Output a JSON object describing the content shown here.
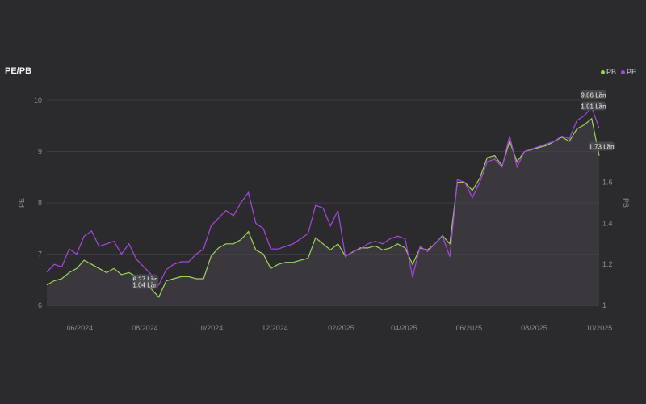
{
  "header": {
    "title": "PE/PB"
  },
  "legend": [
    {
      "name": "PB",
      "color": "#9ed35a"
    },
    {
      "name": "PE",
      "color": "#a747e0"
    }
  ],
  "tooltips": [
    {
      "text": "9.86 Lần",
      "anchor": "right-end",
      "series": "PE"
    },
    {
      "text": "1.91 Lần",
      "anchor": "right-end",
      "series": "PB"
    },
    {
      "text": "1.73 Lần",
      "anchor": "right-axis",
      "series": "PB"
    },
    {
      "text": "6.27 Lần",
      "anchor": "min",
      "series": "PE"
    },
    {
      "text": "1.04 Lần",
      "anchor": "min",
      "series": "PB"
    }
  ],
  "chart_data": {
    "type": "line",
    "title": "PE/PB",
    "ylabel": "PE",
    "y2label": "PB",
    "ylim": [
      6,
      10
    ],
    "y2lim": [
      1,
      2
    ],
    "yticks": [
      "6",
      "7",
      "8",
      "9",
      "10"
    ],
    "y2ticks": [
      "1",
      "1.2",
      "1.4",
      "1.6"
    ],
    "xlim": [
      "2024-05-01",
      "2025-10-01"
    ],
    "xticks": [
      {
        "label": "06/2024",
        "date": "2024-06-01"
      },
      {
        "label": "08/2024",
        "date": "2024-08-01"
      },
      {
        "label": "10/2024",
        "date": "2024-10-01"
      },
      {
        "label": "12/2024",
        "date": "2024-12-01"
      },
      {
        "label": "02/2025",
        "date": "2025-02-01"
      },
      {
        "label": "04/2025",
        "date": "2025-04-01"
      },
      {
        "label": "06/2025",
        "date": "2025-06-01"
      },
      {
        "label": "08/2025",
        "date": "2025-08-01"
      },
      {
        "label": "10/2025",
        "date": "2025-10-01"
      }
    ],
    "grid": true,
    "legend_position": "top-right",
    "series": [
      {
        "name": "PE",
        "axis": "left",
        "color": "#a747e0",
        "points": [
          [
            "2024-05-01",
            6.65
          ],
          [
            "2024-05-08",
            6.8
          ],
          [
            "2024-05-15",
            6.75
          ],
          [
            "2024-05-22",
            7.1
          ],
          [
            "2024-05-29",
            7.0
          ],
          [
            "2024-06-05",
            7.35
          ],
          [
            "2024-06-12",
            7.45
          ],
          [
            "2024-06-19",
            7.15
          ],
          [
            "2024-06-26",
            7.2
          ],
          [
            "2024-07-03",
            7.25
          ],
          [
            "2024-07-10",
            7.0
          ],
          [
            "2024-07-17",
            7.2
          ],
          [
            "2024-07-24",
            6.9
          ],
          [
            "2024-07-31",
            6.75
          ],
          [
            "2024-08-07",
            6.6
          ],
          [
            "2024-08-14",
            6.4
          ],
          [
            "2024-08-21",
            6.7
          ],
          [
            "2024-08-28",
            6.8
          ],
          [
            "2024-09-04",
            6.85
          ],
          [
            "2024-09-11",
            6.85
          ],
          [
            "2024-09-18",
            7.0
          ],
          [
            "2024-09-25",
            7.1
          ],
          [
            "2024-10-02",
            7.55
          ],
          [
            "2024-10-09",
            7.7
          ],
          [
            "2024-10-16",
            7.85
          ],
          [
            "2024-10-23",
            7.75
          ],
          [
            "2024-10-30",
            8.0
          ],
          [
            "2024-11-06",
            8.2
          ],
          [
            "2024-11-13",
            7.6
          ],
          [
            "2024-11-20",
            7.5
          ],
          [
            "2024-11-27",
            7.1
          ],
          [
            "2024-12-04",
            7.1
          ],
          [
            "2024-12-11",
            7.15
          ],
          [
            "2024-12-18",
            7.2
          ],
          [
            "2024-12-25",
            7.3
          ],
          [
            "2025-01-01",
            7.4
          ],
          [
            "2025-01-08",
            7.95
          ],
          [
            "2025-01-15",
            7.9
          ],
          [
            "2025-01-22",
            7.55
          ],
          [
            "2025-01-29",
            7.85
          ],
          [
            "2025-02-05",
            6.95
          ],
          [
            "2025-02-12",
            7.05
          ],
          [
            "2025-02-19",
            7.1
          ],
          [
            "2025-02-26",
            7.2
          ],
          [
            "2025-03-05",
            7.25
          ],
          [
            "2025-03-12",
            7.2
          ],
          [
            "2025-03-19",
            7.3
          ],
          [
            "2025-03-26",
            7.35
          ],
          [
            "2025-04-02",
            7.3
          ],
          [
            "2025-04-09",
            6.55
          ],
          [
            "2025-04-16",
            7.15
          ],
          [
            "2025-04-23",
            7.05
          ],
          [
            "2025-04-30",
            7.2
          ],
          [
            "2025-05-07",
            7.35
          ],
          [
            "2025-05-14",
            6.95
          ],
          [
            "2025-05-21",
            8.45
          ],
          [
            "2025-05-28",
            8.4
          ],
          [
            "2025-06-04",
            8.1
          ],
          [
            "2025-06-11",
            8.4
          ],
          [
            "2025-06-18",
            8.8
          ],
          [
            "2025-06-25",
            8.85
          ],
          [
            "2025-07-02",
            8.7
          ],
          [
            "2025-07-09",
            9.3
          ],
          [
            "2025-07-16",
            8.7
          ],
          [
            "2025-07-23",
            9.0
          ],
          [
            "2025-07-30",
            9.05
          ],
          [
            "2025-08-06",
            9.1
          ],
          [
            "2025-08-13",
            9.15
          ],
          [
            "2025-08-20",
            9.2
          ],
          [
            "2025-08-27",
            9.3
          ],
          [
            "2025-09-03",
            9.25
          ],
          [
            "2025-09-10",
            9.6
          ],
          [
            "2025-09-17",
            9.7
          ],
          [
            "2025-09-24",
            9.86
          ],
          [
            "2025-10-01",
            9.45
          ]
        ]
      },
      {
        "name": "PB",
        "axis": "right",
        "color": "#9ed35a",
        "points": [
          [
            "2024-05-01",
            1.1
          ],
          [
            "2024-05-08",
            1.12
          ],
          [
            "2024-05-15",
            1.13
          ],
          [
            "2024-05-22",
            1.16
          ],
          [
            "2024-05-29",
            1.18
          ],
          [
            "2024-06-05",
            1.22
          ],
          [
            "2024-06-12",
            1.2
          ],
          [
            "2024-06-19",
            1.18
          ],
          [
            "2024-06-26",
            1.16
          ],
          [
            "2024-07-03",
            1.18
          ],
          [
            "2024-07-10",
            1.15
          ],
          [
            "2024-07-17",
            1.16
          ],
          [
            "2024-07-24",
            1.14
          ],
          [
            "2024-07-31",
            1.12
          ],
          [
            "2024-08-07",
            1.08
          ],
          [
            "2024-08-14",
            1.04
          ],
          [
            "2024-08-21",
            1.12
          ],
          [
            "2024-08-28",
            1.13
          ],
          [
            "2024-09-04",
            1.14
          ],
          [
            "2024-09-11",
            1.14
          ],
          [
            "2024-09-18",
            1.13
          ],
          [
            "2024-09-25",
            1.13
          ],
          [
            "2024-10-02",
            1.24
          ],
          [
            "2024-10-09",
            1.28
          ],
          [
            "2024-10-16",
            1.3
          ],
          [
            "2024-10-23",
            1.3
          ],
          [
            "2024-10-30",
            1.32
          ],
          [
            "2024-11-06",
            1.36
          ],
          [
            "2024-11-13",
            1.27
          ],
          [
            "2024-11-20",
            1.25
          ],
          [
            "2024-11-27",
            1.18
          ],
          [
            "2024-12-04",
            1.2
          ],
          [
            "2024-12-11",
            1.21
          ],
          [
            "2024-12-18",
            1.21
          ],
          [
            "2024-12-25",
            1.22
          ],
          [
            "2025-01-01",
            1.23
          ],
          [
            "2025-01-08",
            1.33
          ],
          [
            "2025-01-15",
            1.3
          ],
          [
            "2025-01-22",
            1.27
          ],
          [
            "2025-01-29",
            1.3
          ],
          [
            "2025-02-05",
            1.24
          ],
          [
            "2025-02-12",
            1.26
          ],
          [
            "2025-02-19",
            1.28
          ],
          [
            "2025-02-26",
            1.28
          ],
          [
            "2025-03-05",
            1.29
          ],
          [
            "2025-03-12",
            1.27
          ],
          [
            "2025-03-19",
            1.28
          ],
          [
            "2025-03-26",
            1.3
          ],
          [
            "2025-04-02",
            1.28
          ],
          [
            "2025-04-09",
            1.2
          ],
          [
            "2025-04-16",
            1.28
          ],
          [
            "2025-04-23",
            1.27
          ],
          [
            "2025-04-30",
            1.3
          ],
          [
            "2025-05-07",
            1.34
          ],
          [
            "2025-05-14",
            1.3
          ],
          [
            "2025-05-21",
            1.6
          ],
          [
            "2025-05-28",
            1.6
          ],
          [
            "2025-06-04",
            1.56
          ],
          [
            "2025-06-11",
            1.62
          ],
          [
            "2025-06-18",
            1.72
          ],
          [
            "2025-06-25",
            1.73
          ],
          [
            "2025-07-02",
            1.68
          ],
          [
            "2025-07-09",
            1.8
          ],
          [
            "2025-07-16",
            1.7
          ],
          [
            "2025-07-23",
            1.75
          ],
          [
            "2025-07-30",
            1.76
          ],
          [
            "2025-08-06",
            1.77
          ],
          [
            "2025-08-13",
            1.78
          ],
          [
            "2025-08-20",
            1.8
          ],
          [
            "2025-08-27",
            1.82
          ],
          [
            "2025-09-03",
            1.8
          ],
          [
            "2025-09-10",
            1.86
          ],
          [
            "2025-09-17",
            1.88
          ],
          [
            "2025-09-24",
            1.91
          ],
          [
            "2025-10-01",
            1.73
          ]
        ]
      }
    ]
  }
}
